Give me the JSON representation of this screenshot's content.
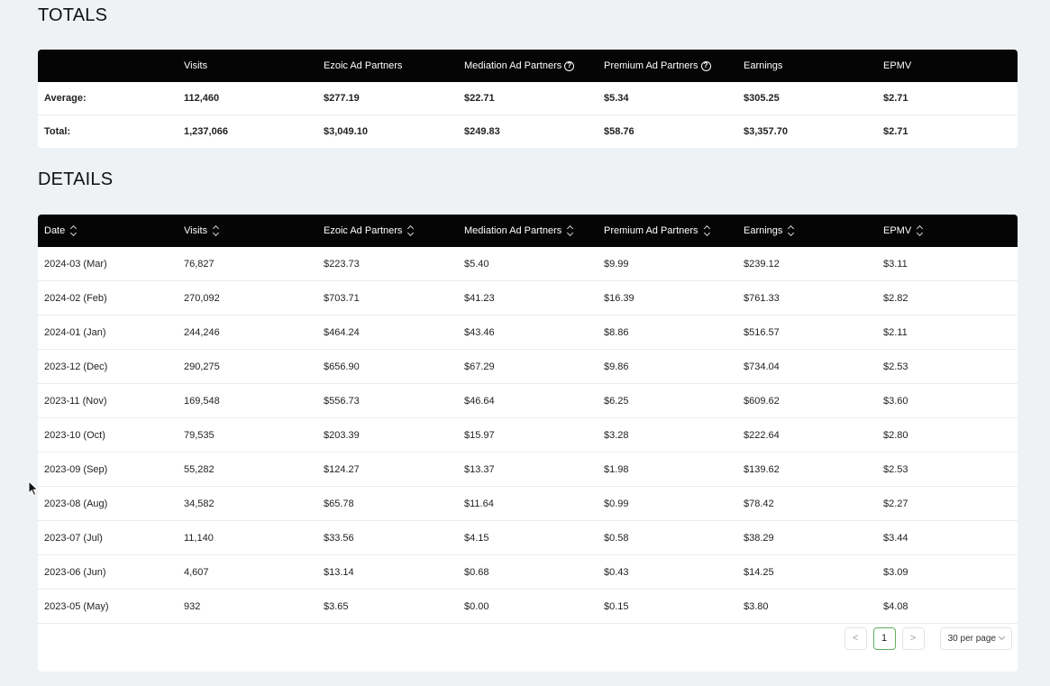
{
  "totals": {
    "title": "TOTALS",
    "headers": [
      "",
      "Visits",
      "Ezoic Ad Partners",
      "Mediation Ad Partners",
      "Premium Ad Partners",
      "Earnings",
      "EPMV"
    ],
    "rows": [
      [
        "Average:",
        "112,460",
        "$277.19",
        "$22.71",
        "$5.34",
        "$305.25",
        "$2.71"
      ],
      [
        "Total:",
        "1,237,066",
        "$3,049.10",
        "$249.83",
        "$58.76",
        "$3,357.70",
        "$2.71"
      ]
    ],
    "help_glyph": "?"
  },
  "details": {
    "title": "DETAILS",
    "headers": [
      "Date",
      "Visits",
      "Ezoic Ad Partners",
      "Mediation Ad Partners",
      "Premium Ad Partners",
      "Earnings",
      "EPMV"
    ],
    "rows": [
      [
        "2024-03 (Mar)",
        "76,827",
        "$223.73",
        "$5.40",
        "$9.99",
        "$239.12",
        "$3.11"
      ],
      [
        "2024-02 (Feb)",
        "270,092",
        "$703.71",
        "$41.23",
        "$16.39",
        "$761.33",
        "$2.82"
      ],
      [
        "2024-01 (Jan)",
        "244,246",
        "$464.24",
        "$43.46",
        "$8.86",
        "$516.57",
        "$2.11"
      ],
      [
        "2023-12 (Dec)",
        "290,275",
        "$656.90",
        "$67.29",
        "$9.86",
        "$734.04",
        "$2.53"
      ],
      [
        "2023-11 (Nov)",
        "169,548",
        "$556.73",
        "$46.64",
        "$6.25",
        "$609.62",
        "$3.60"
      ],
      [
        "2023-10 (Oct)",
        "79,535",
        "$203.39",
        "$15.97",
        "$3.28",
        "$222.64",
        "$2.80"
      ],
      [
        "2023-09 (Sep)",
        "55,282",
        "$124.27",
        "$13.37",
        "$1.98",
        "$139.62",
        "$2.53"
      ],
      [
        "2023-08 (Aug)",
        "34,582",
        "$65.78",
        "$11.64",
        "$0.99",
        "$78.42",
        "$2.27"
      ],
      [
        "2023-07 (Jul)",
        "11,140",
        "$33.56",
        "$4.15",
        "$0.58",
        "$38.29",
        "$3.44"
      ],
      [
        "2023-06 (Jun)",
        "4,607",
        "$13.14",
        "$0.68",
        "$0.43",
        "$14.25",
        "$3.09"
      ],
      [
        "2023-05 (May)",
        "932",
        "$3.65",
        "$0.00",
        "$0.15",
        "$3.80",
        "$4.08"
      ]
    ]
  },
  "pagination": {
    "prev": "<",
    "current_page": "1",
    "next": ">",
    "per_page": "30 per page"
  },
  "colors": {
    "header_bg": "#050505",
    "page_bg": "#eef2f5",
    "active_page_border": "#5fb05f"
  },
  "icons": {
    "help": "question-circle-icon",
    "sort": "sort-arrows-icon",
    "cursor": "mouse-pointer-icon",
    "per_page_chevron": "chevron-down-icon"
  }
}
